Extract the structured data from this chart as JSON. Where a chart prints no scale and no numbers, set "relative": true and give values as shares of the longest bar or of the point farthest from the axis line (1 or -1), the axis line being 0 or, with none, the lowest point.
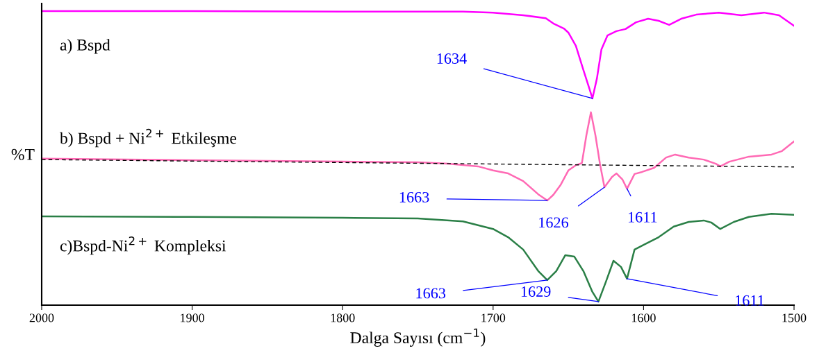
{
  "chart_data": {
    "type": "line",
    "relative": true,
    "xlabel": "Dalga Sayısı (cm$^{−1}$)",
    "ylabel": "%T",
    "xlim": [
      2000,
      1500
    ],
    "xticks": [
      2000,
      1900,
      1800,
      1700,
      1600,
      1500
    ],
    "grid": false,
    "tick_labels": "x",
    "series": [
      {
        "name": "a) Bspd",
        "color": "#ff00ff",
        "x": [
          2000,
          1900,
          1800,
          1750,
          1720,
          1700,
          1680,
          1665,
          1660,
          1653,
          1650,
          1645,
          1640,
          1636,
          1634,
          1631,
          1628,
          1624,
          1618,
          1612,
          1605,
          1597,
          1590,
          1583,
          1575,
          1565,
          1550,
          1535,
          1520,
          1510,
          1500
        ],
        "values": [
          1.0,
          1.0,
          0.998,
          0.998,
          0.998,
          0.995,
          0.986,
          0.976,
          0.958,
          0.941,
          0.927,
          0.882,
          0.8,
          0.736,
          0.703,
          0.771,
          0.87,
          0.917,
          0.932,
          0.939,
          0.962,
          0.974,
          0.967,
          0.953,
          0.974,
          0.988,
          0.995,
          0.986,
          0.995,
          0.986,
          0.95
        ]
      },
      {
        "name": "b) Bspd + Ni$^{2+}$ Etkileşme",
        "color": "#ff69b4",
        "x": [
          2000,
          1900,
          1800,
          1750,
          1730,
          1710,
          1700,
          1690,
          1680,
          1670,
          1664,
          1660,
          1655,
          1650,
          1645,
          1641,
          1638,
          1635,
          1632,
          1629,
          1626,
          1621,
          1618,
          1614,
          1611,
          1606,
          1601,
          1593,
          1585,
          1579,
          1570,
          1560,
          1552,
          1549,
          1543,
          1530,
          1515,
          1508,
          1500
        ],
        "values": [
          0.498,
          0.493,
          0.488,
          0.486,
          0.481,
          0.472,
          0.458,
          0.448,
          0.422,
          0.377,
          0.356,
          0.375,
          0.41,
          0.458,
          0.476,
          0.483,
          0.578,
          0.656,
          0.578,
          0.481,
          0.401,
          0.436,
          0.448,
          0.427,
          0.396,
          0.446,
          0.453,
          0.467,
          0.502,
          0.512,
          0.502,
          0.495,
          0.481,
          0.472,
          0.488,
          0.505,
          0.512,
          0.524,
          0.557
        ]
      },
      {
        "name": "c)Bspd-Ni$^{2+}$ Kompleksi",
        "color": "#2a7f46",
        "x": [
          2000,
          1900,
          1800,
          1750,
          1720,
          1700,
          1690,
          1680,
          1670,
          1664,
          1658,
          1652,
          1646,
          1640,
          1634,
          1630,
          1625,
          1620,
          1615,
          1611,
          1606,
          1600,
          1590,
          1580,
          1570,
          1560,
          1555,
          1549,
          1540,
          1530,
          1515,
          1500
        ],
        "values": [
          0.302,
          0.3,
          0.297,
          0.295,
          0.285,
          0.259,
          0.231,
          0.189,
          0.116,
          0.085,
          0.116,
          0.17,
          0.165,
          0.116,
          0.045,
          0.012,
          0.08,
          0.151,
          0.13,
          0.09,
          0.189,
          0.205,
          0.231,
          0.267,
          0.283,
          0.288,
          0.281,
          0.259,
          0.283,
          0.3,
          0.311,
          0.307
        ]
      },
      {
        "type": "line",
        "line_style": "dashed",
        "color": "#000000",
        "x": [
          2000,
          1500
        ],
        "values": [
          0.495,
          0.47
        ]
      }
    ],
    "annotations": [
      {
        "text": "1634",
        "x": 1634,
        "y": 0.703
      },
      {
        "text": "1663",
        "x": 1664,
        "y": 0.356
      },
      {
        "text": "1626",
        "x": 1626,
        "y": 0.401
      },
      {
        "text": "1611",
        "x": 1611,
        "y": 0.396
      },
      {
        "text": "1663",
        "x": 1664,
        "y": 0.085
      },
      {
        "text": "1629",
        "x": 1630,
        "y": 0.012
      },
      {
        "text": "1611",
        "x": 1611,
        "y": 0.09
      }
    ]
  }
}
